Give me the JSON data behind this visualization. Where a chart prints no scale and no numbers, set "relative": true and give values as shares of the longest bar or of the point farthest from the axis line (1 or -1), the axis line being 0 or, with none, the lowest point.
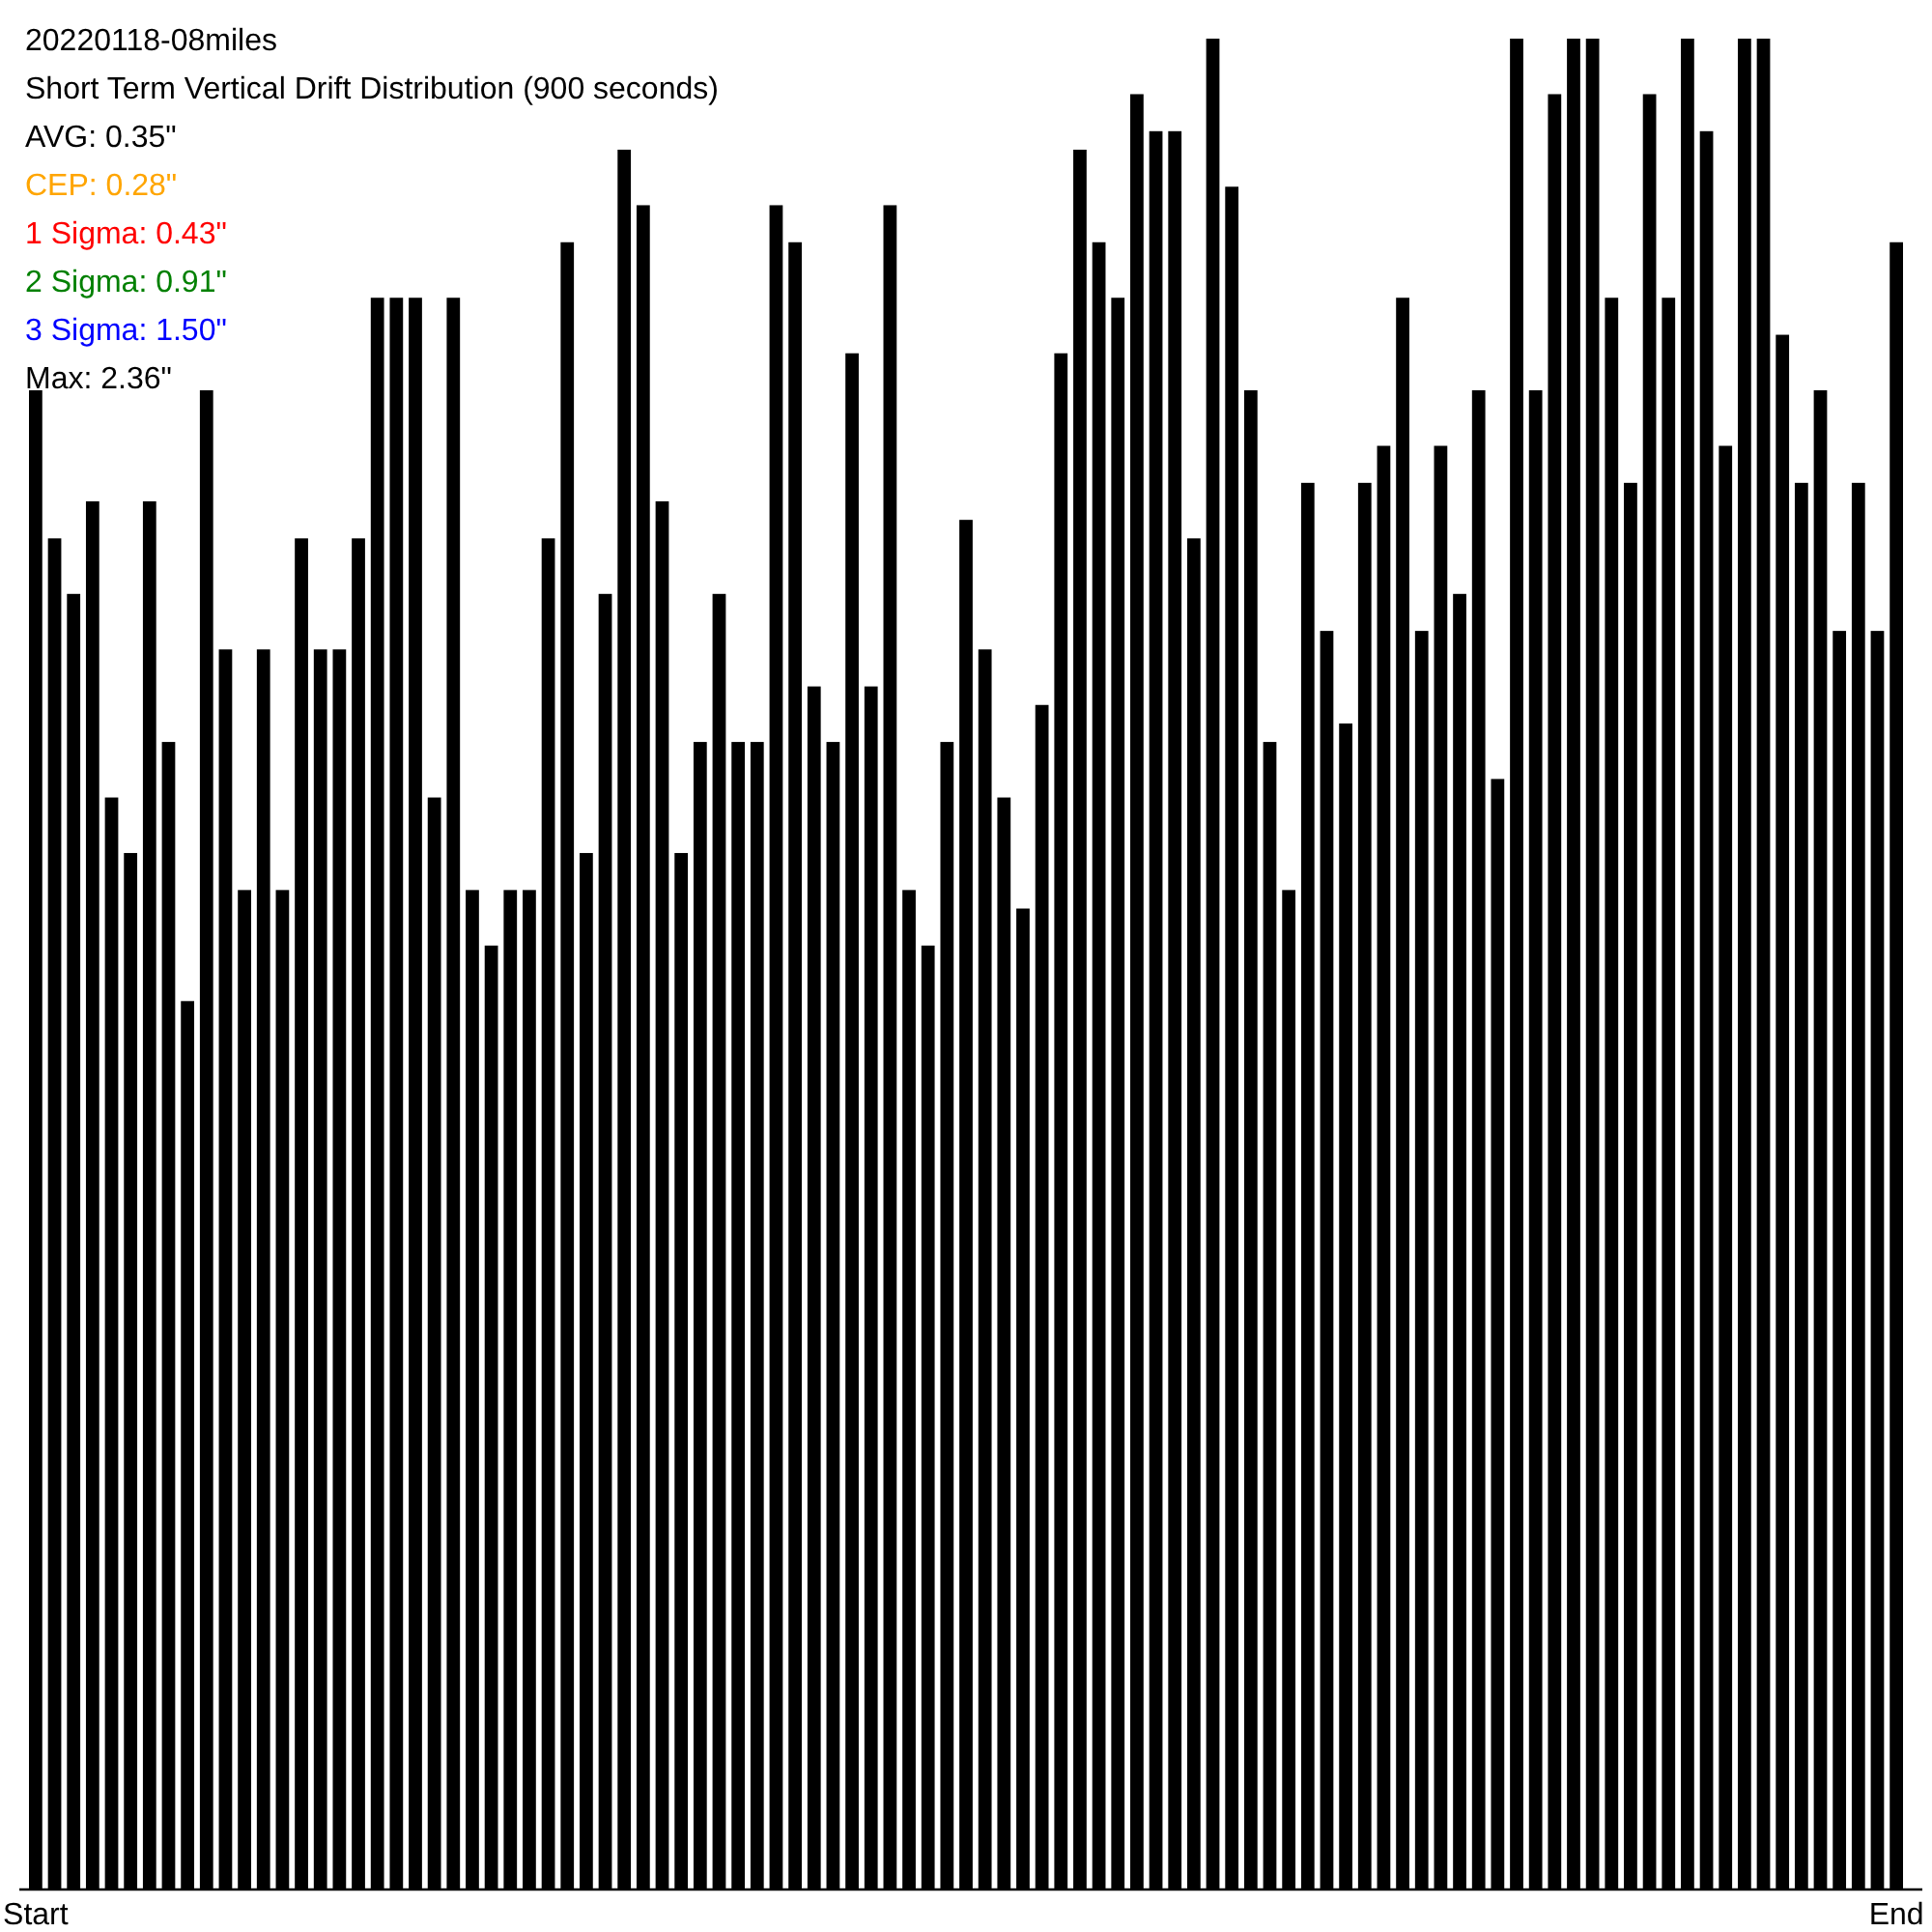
{
  "chart_data": {
    "type": "bar",
    "title": "20220118-08miles",
    "subtitle": "Short Term Vertical Drift Distribution (900 seconds)",
    "annotations": [
      "AVG: 0.35\"",
      "CEP: 0.28\"",
      "1 Sigma: 0.43\"",
      "2 Sigma: 0.91\"",
      "3 Sigma: 1.50\"",
      "Max: 2.36\""
    ],
    "relative": true,
    "color": "#000000",
    "categories": [
      "Start",
      null,
      null,
      null,
      null,
      null,
      null,
      null,
      null,
      null,
      null,
      null,
      null,
      null,
      null,
      null,
      null,
      null,
      null,
      null,
      null,
      null,
      null,
      null,
      null,
      null,
      null,
      null,
      null,
      null,
      null,
      null,
      null,
      null,
      null,
      null,
      null,
      null,
      null,
      null,
      null,
      null,
      null,
      null,
      null,
      null,
      null,
      null,
      null,
      null,
      null,
      null,
      null,
      null,
      null,
      null,
      null,
      null,
      null,
      null,
      null,
      null,
      null,
      null,
      null,
      null,
      null,
      null,
      null,
      null,
      null,
      null,
      null,
      null,
      null,
      null,
      null,
      null,
      null,
      null,
      null,
      null,
      null,
      null,
      null,
      null,
      null,
      null,
      null,
      null,
      null,
      null,
      null,
      null,
      null,
      null,
      null,
      null,
      "End"
    ],
    "values": [
      0.81,
      0.73,
      0.7,
      0.75,
      0.59,
      0.56,
      0.75,
      0.62,
      0.48,
      0.81,
      0.67,
      0.54,
      0.67,
      0.54,
      0.73,
      0.67,
      0.67,
      0.73,
      0.86,
      0.86,
      0.86,
      0.59,
      0.86,
      0.54,
      0.51,
      0.54,
      0.54,
      0.73,
      0.89,
      0.56,
      0.7,
      0.94,
      0.91,
      0.75,
      0.56,
      0.62,
      0.7,
      0.62,
      0.62,
      0.91,
      0.89,
      0.65,
      0.62,
      0.83,
      0.65,
      0.91,
      0.54,
      0.51,
      0.62,
      0.74,
      0.67,
      0.59,
      0.53,
      0.64,
      0.83,
      0.94,
      0.89,
      0.86,
      0.97,
      0.95,
      0.95,
      0.73,
      1.0,
      0.92,
      0.81,
      0.62,
      0.54,
      0.76,
      0.68,
      0.63,
      0.76,
      0.78,
      0.86,
      0.68,
      0.78,
      0.7,
      0.81,
      0.6,
      1.0,
      0.81,
      0.97,
      1.0,
      1.0,
      0.86,
      0.76,
      0.97,
      0.86,
      1.0,
      0.95,
      0.78,
      1.0,
      1.0,
      0.84,
      0.76,
      0.81,
      0.68,
      0.76,
      0.68,
      0.89
    ]
  }
}
